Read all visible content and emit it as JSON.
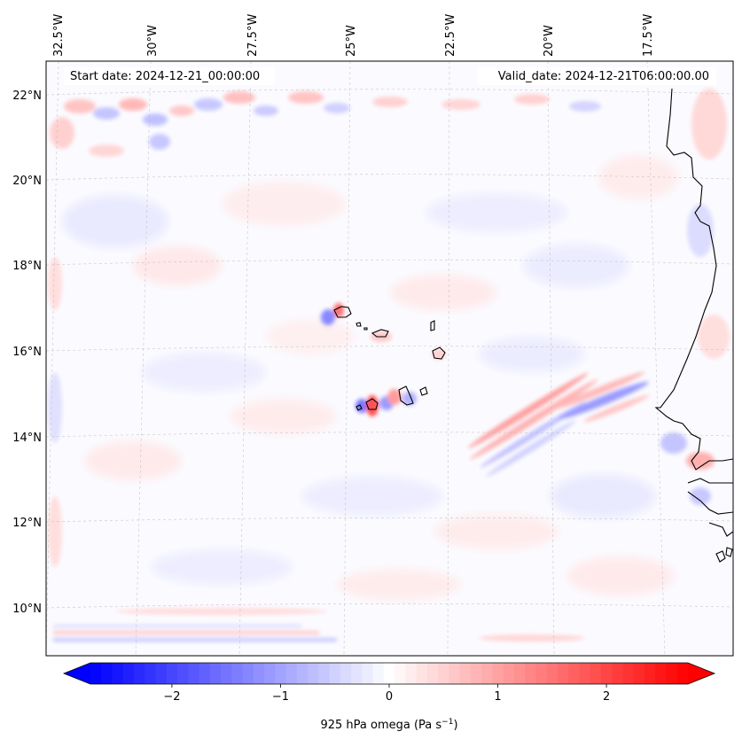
{
  "map": {
    "start_date": "Start date: 2024-12-21_00:00:00",
    "valid_date": "Valid_date: 2024-12-21T06:00:00.00",
    "lon_labels": [
      "32.5°W",
      "30°W",
      "27.5°W",
      "25°W",
      "22.5°W",
      "20°W",
      "17.5°W"
    ],
    "lat_labels": [
      "22°N",
      "20°N",
      "18°N",
      "16°N",
      "14°N",
      "12°N",
      "10°N"
    ],
    "colorbar": {
      "label": "925 hPa omega (Pa s",
      "label_exponent": "−1",
      "label_suffix": ")",
      "ticks": [
        "−2",
        "−1",
        "0",
        "1",
        "2"
      ],
      "tick_values": [
        -2,
        -1,
        0,
        1,
        2
      ],
      "range": [
        -2.75,
        2.75
      ],
      "levels": 55,
      "colormap": "bwr",
      "color_min": "#0000ff",
      "color_mid": "#ffffff",
      "color_max": "#ff0000"
    },
    "coastline_color": "#000000",
    "gridline_color": "#bbbbbb"
  }
}
